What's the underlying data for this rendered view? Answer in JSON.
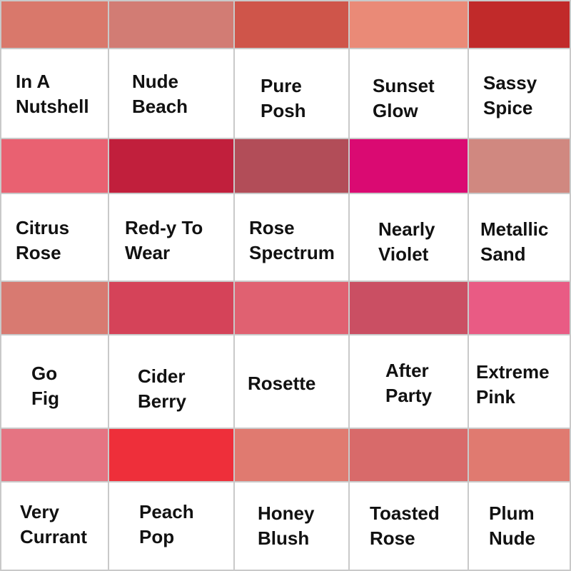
{
  "shades": [
    [
      {
        "name": "In A\nNutshell",
        "color": "#D9786B"
      },
      {
        "name": "Nude\nBeach",
        "color": "#D27C74"
      },
      {
        "name": "Pure\nPosh",
        "color": "#CF554A"
      },
      {
        "name": "Sunset\nGlow",
        "color": "#EA8A77"
      },
      {
        "name": "Sassy\nSpice",
        "color": "#C12A2A"
      }
    ],
    [
      {
        "name": "Citrus\nRose",
        "color": "#E96171"
      },
      {
        "name": "Red-y To\nWear",
        "color": "#C11F3C"
      },
      {
        "name": "Rose\nSpectrum",
        "color": "#B24D58"
      },
      {
        "name": "Nearly\nViolet",
        "color": "#DA0A72"
      },
      {
        "name": "Metallic\nSand",
        "color": "#D08880"
      }
    ],
    [
      {
        "name": "Go\nFig",
        "color": "#D87A71"
      },
      {
        "name": "Cider\nBerry",
        "color": "#D54359"
      },
      {
        "name": "Rosette",
        "color": "#E06171"
      },
      {
        "name": "After\nParty",
        "color": "#CA4F63"
      },
      {
        "name": "Extreme\nPink",
        "color": "#E95B84"
      }
    ],
    [
      {
        "name": "Very\nCurrant",
        "color": "#E57482"
      },
      {
        "name": "Peach\nPop",
        "color": "#EE2F3A"
      },
      {
        "name": "Honey\nBlush",
        "color": "#E07A70"
      },
      {
        "name": "Toasted\nRose",
        "color": "#D86A6A"
      },
      {
        "name": "Plum\nNude",
        "color": "#E07A70"
      }
    ]
  ]
}
